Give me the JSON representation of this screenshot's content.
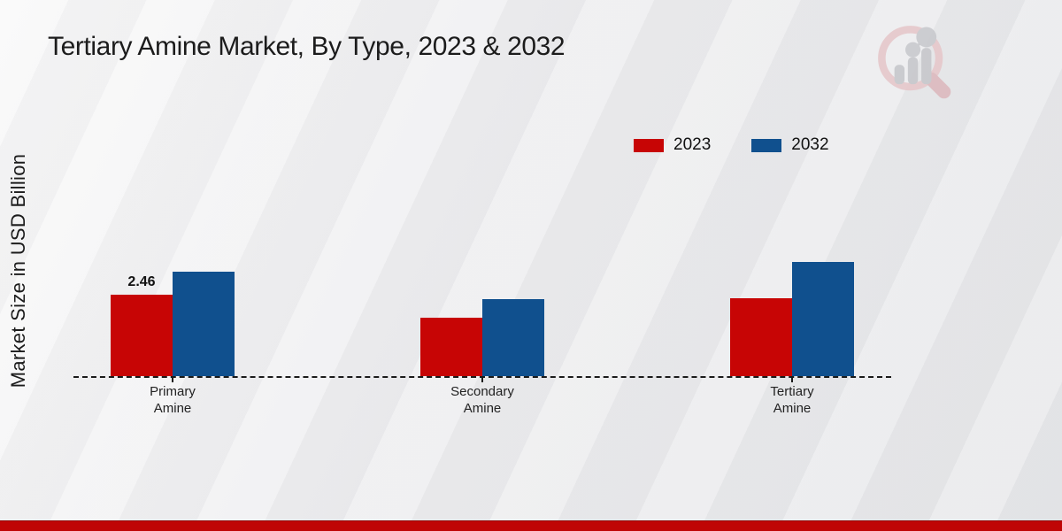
{
  "title": "Tertiary Amine Market, By Type, 2023 & 2032",
  "y_axis_label": "Market Size in USD Billion",
  "legend": {
    "items": [
      {
        "label": "2023",
        "color": "#c70505"
      },
      {
        "label": "2032",
        "color": "#10508e"
      }
    ]
  },
  "chart_data": {
    "type": "bar",
    "title": "Tertiary Amine Market, By Type, 2023 & 2032",
    "categories": [
      "Primary Amine",
      "Secondary Amine",
      "Tertiary Amine"
    ],
    "series": [
      {
        "name": "2023",
        "color": "#c70505",
        "values": [
          2.46,
          1.76,
          2.35
        ]
      },
      {
        "name": "2032",
        "color": "#10508e",
        "values": [
          3.16,
          2.33,
          3.45
        ]
      }
    ],
    "data_labels": [
      {
        "series": "2023",
        "category": "Primary Amine",
        "text": "2.46"
      }
    ],
    "xlabel": "",
    "ylabel": "Market Size in USD Billion",
    "ylim": [
      0,
      3.8
    ],
    "grid": false,
    "axis_line_style": "dashed",
    "legend_position": "top-right"
  },
  "watermark": {
    "name": "market-research-future-logo"
  },
  "footer": {
    "bar_color": "#bf0505"
  }
}
